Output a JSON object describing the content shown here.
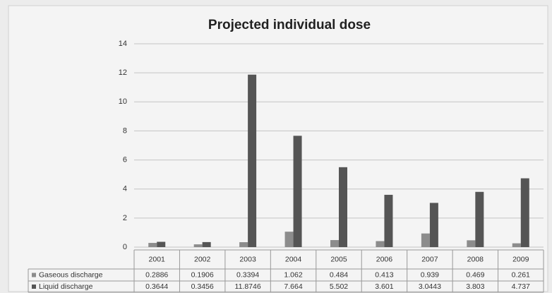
{
  "chart_data": {
    "type": "bar",
    "title": "Projected individual dose",
    "categories": [
      "2001",
      "2002",
      "2003",
      "2004",
      "2005",
      "2006",
      "2007",
      "2008",
      "2009"
    ],
    "series": [
      {
        "name": "Gaseous discharge",
        "color": "#8c8c8c",
        "values": [
          0.2886,
          0.1906,
          0.3394,
          1.062,
          0.484,
          0.413,
          0.939,
          0.469,
          0.261
        ]
      },
      {
        "name": "Liquid discharge",
        "color": "#555555",
        "values": [
          0.3644,
          0.3456,
          11.8746,
          7.664,
          5.502,
          3.601,
          3.0443,
          3.803,
          4.737
        ]
      }
    ],
    "ylim": [
      0,
      14
    ],
    "yticks": [
      0,
      2,
      4,
      6,
      8,
      10,
      12,
      14
    ],
    "grid": true,
    "data_table": true
  }
}
